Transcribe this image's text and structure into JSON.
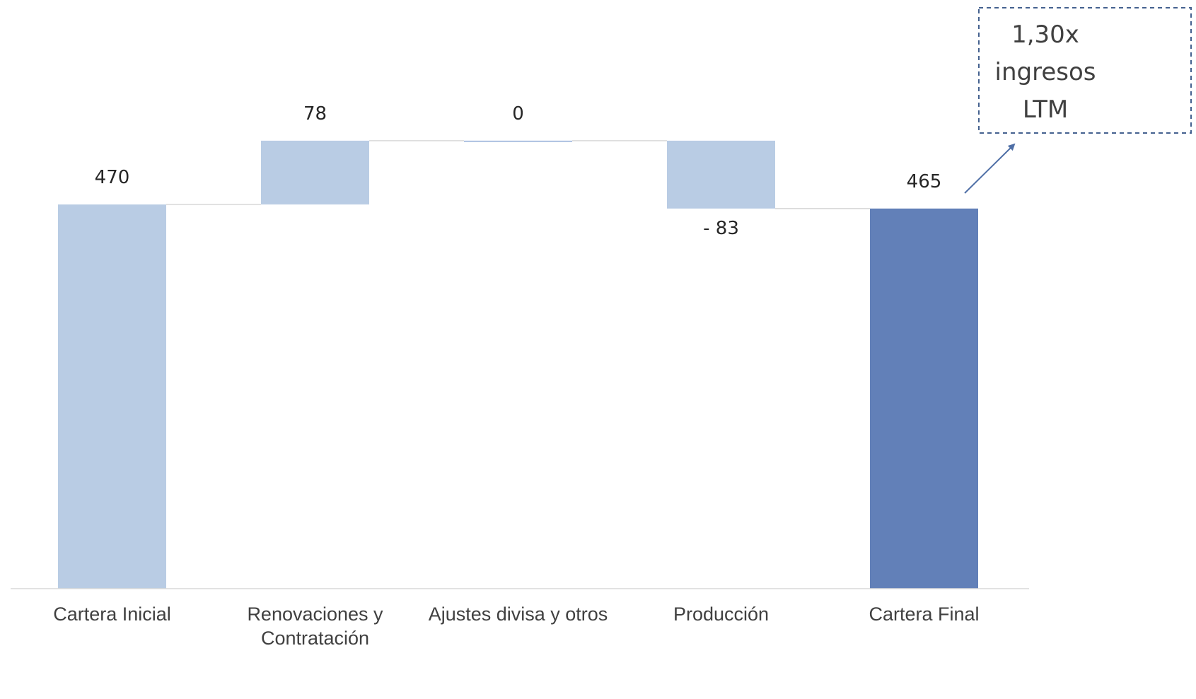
{
  "chart_data": {
    "type": "bar",
    "subtype": "waterfall",
    "categories": [
      "Cartera Inicial",
      "Renovaciones y Contratación",
      "Ajustes divisa y otros",
      "Producción",
      "Cartera Final"
    ],
    "category_lines": [
      [
        "Cartera Inicial"
      ],
      [
        "Renovaciones y",
        "Contratación"
      ],
      [
        "Ajustes divisa y otros"
      ],
      [
        "Producción"
      ],
      [
        "Cartera Final"
      ]
    ],
    "values": [
      470,
      78,
      0,
      -83,
      465
    ],
    "value_labels": [
      "470",
      "78",
      "0",
      "- 83",
      "465"
    ],
    "bar_kinds": [
      "total",
      "delta",
      "delta",
      "delta",
      "total"
    ],
    "ylim": [
      0,
      560
    ],
    "grid": false,
    "colors": {
      "light": "#b9cce4",
      "dark": "#6280b8",
      "axis": "#d9d9d9",
      "connector": "#d9d9d9",
      "callout_border": "#44618f",
      "arrow": "#4f6fa6"
    },
    "annotation": {
      "lines": [
        "1,30x",
        "ingresos",
        "LTM"
      ],
      "points_to": "Cartera Final"
    }
  }
}
